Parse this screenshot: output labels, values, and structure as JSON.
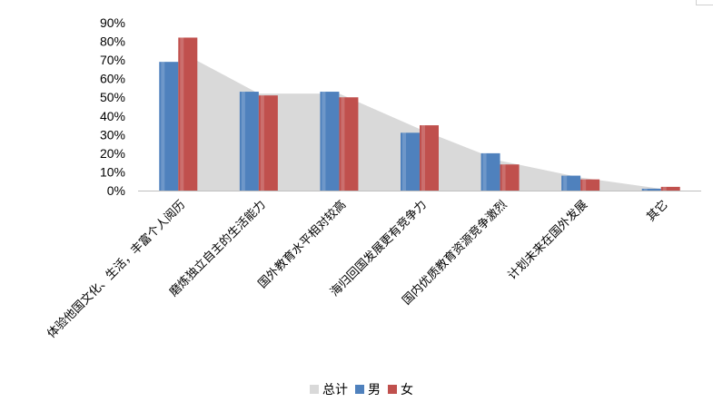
{
  "chart_data": {
    "type": "bar",
    "categories": [
      "体验他国文化、生活，丰富个人阅历",
      "磨炼独立自主的生活能力",
      "国外教育水平相对较高",
      "海归回国发展更有竞争力",
      "国内优质教育资源竞争激烈",
      "计划未来在国外发展",
      "其它"
    ],
    "series": [
      {
        "name": "总计",
        "chart_type": "area",
        "color": "#d9d9d9",
        "values": [
          75,
          52,
          52,
          33,
          16,
          7,
          1
        ]
      },
      {
        "name": "男",
        "color": "#4f81bd",
        "values": [
          69,
          53,
          53,
          31,
          20,
          8,
          1
        ]
      },
      {
        "name": "女",
        "color": "#c0504d",
        "values": [
          82,
          51,
          50,
          35,
          14,
          6,
          2
        ]
      }
    ],
    "y_ticks": [
      "0%",
      "10%",
      "20%",
      "30%",
      "40%",
      "50%",
      "60%",
      "70%",
      "80%",
      "90%"
    ],
    "ylim": [
      0,
      90
    ],
    "y_unit": "%",
    "legend_position": "bottom",
    "grid": false
  }
}
